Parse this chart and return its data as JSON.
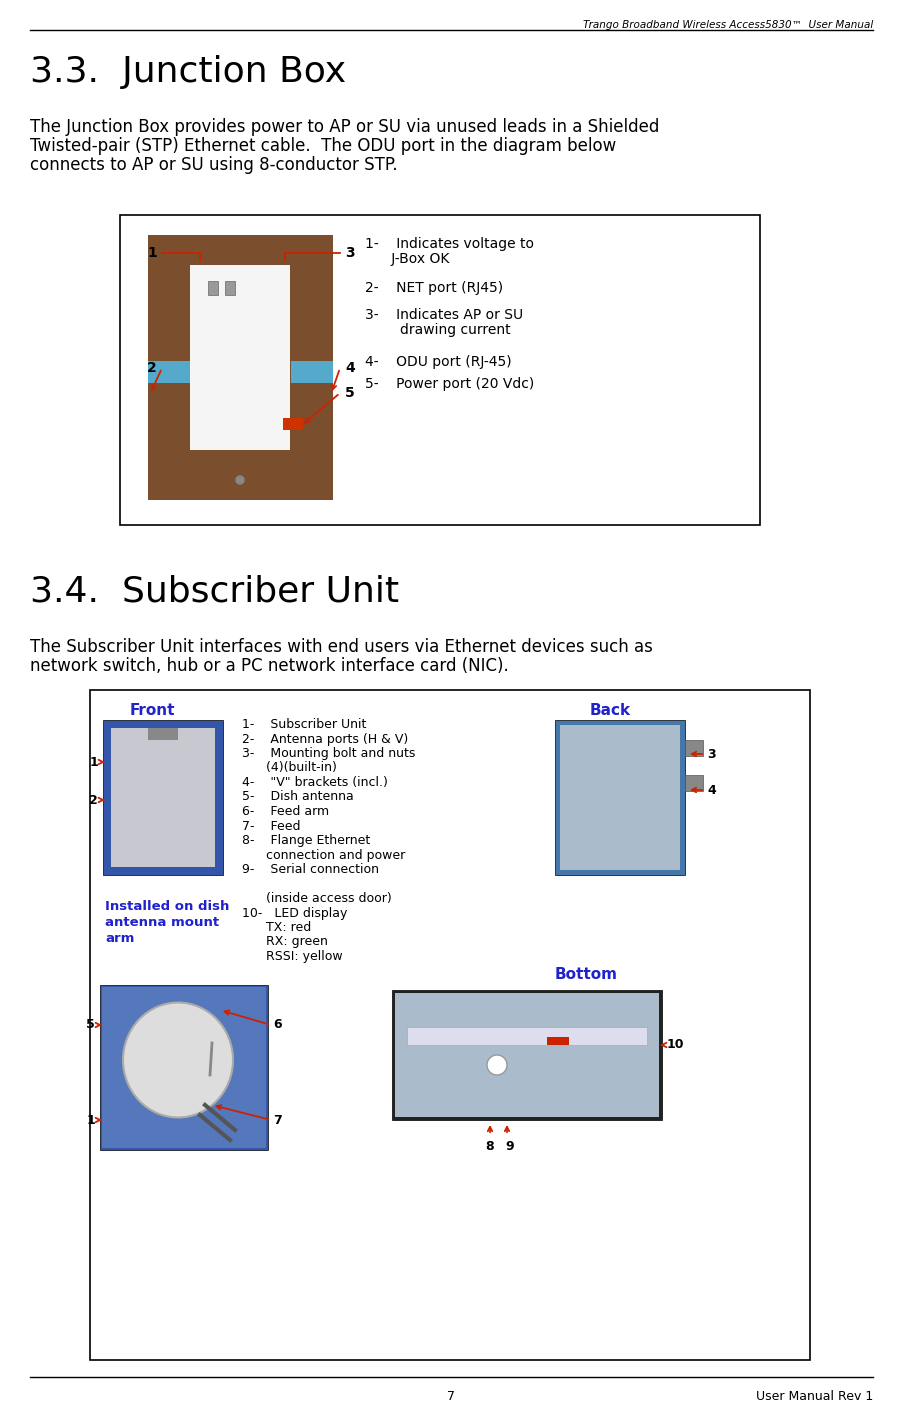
{
  "header_text": "Trango Broadband Wireless Access5830™  User Manual",
  "footer_page": "7",
  "footer_right": "User Manual Rev 1",
  "section33_title": "3.3.  Junction Box",
  "section33_body1": "The Junction Box provides power to AP or SU via unused leads in a Shielded",
  "section33_body2": "Twisted-pair (STP) Ethernet cable.  The ODU port in the diagram below",
  "section33_body3": "connects to AP or SU using 8-conductor STP.",
  "section34_title": "3.4.  Subscriber Unit",
  "section34_body1": "The Subscriber Unit interfaces with end users via Ethernet devices such as",
  "section34_body2": "network switch, hub or a PC network interface card (NIC).",
  "jbox_legend_1a": "1-    Indicates voltage to",
  "jbox_legend_1b": "      J-Box OK",
  "jbox_legend_2": "2-    NET port (RJ45)",
  "jbox_legend_3a": "3-    Indicates AP or SU",
  "jbox_legend_3b": "        drawing current",
  "jbox_legend_4": "4-    ODU port (RJ-45)",
  "jbox_legend_5": "5-    Power port (20 Vdc)",
  "su_legend_1": "1-    Subscriber Unit",
  "su_legend_2": "2-    Antenna ports (H & V)",
  "su_legend_3a": "3-    Mounting bolt and nuts",
  "su_legend_3b": "      (4)(built-in)",
  "su_legend_4": "4-    \"V\" brackets (incl.)",
  "su_legend_5": "5-    Dish antenna",
  "su_legend_6": "6-    Feed arm",
  "su_legend_7": "7-    Feed",
  "su_legend_8a": "8-    Flange Ethernet",
  "su_legend_8b": "      connection and power",
  "su_legend_9": "9-    Serial connection",
  "su_legend_9b": "",
  "su_legend_10a": "      (inside access door)",
  "su_legend_10b": "10-   LED display",
  "su_legend_10c": "      TX: red",
  "su_legend_10d": "      RX: green",
  "su_legend_10e": "      RSSI: yellow",
  "front_label": "Front",
  "back_label": "Back",
  "bottom_label": "Bottom",
  "installed_label_1": "Installed on dish",
  "installed_label_2": "antenna mount",
  "installed_label_3": "arm",
  "bg_color": "#ffffff",
  "arrow_color": "#cc2200",
  "front_back_color": "#2222cc",
  "bottom_color": "#2222cc",
  "installed_color": "#2222cc"
}
